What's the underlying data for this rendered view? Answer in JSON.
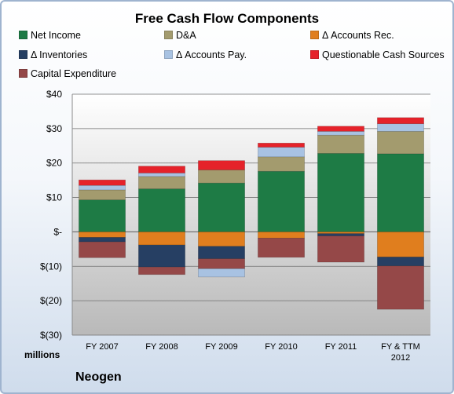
{
  "chart_data": {
    "type": "bar",
    "stacked": true,
    "title": "Free Cash Flow Components",
    "xlabel": "",
    "ylabel": "millions",
    "ylim": [
      -30,
      40
    ],
    "yticks": [
      40,
      30,
      20,
      10,
      0,
      -10,
      -20,
      -30
    ],
    "ytick_labels": [
      "$40",
      "$30",
      "$20",
      "$10",
      "$-",
      "$(10)",
      "$(20)",
      "$(30)"
    ],
    "grid": true,
    "legend_position": "top",
    "categories": [
      [
        "FY 2007"
      ],
      [
        "FY 2008"
      ],
      [
        "FY 2009"
      ],
      [
        "FY 2010"
      ],
      [
        "FY 2011"
      ],
      [
        "FY & TTM",
        "2012"
      ]
    ],
    "series": [
      {
        "name": "Net Income",
        "color": "#1e7b45",
        "values": [
          9.3,
          12.5,
          14.2,
          17.6,
          22.8,
          22.7
        ]
      },
      {
        "name": "D&A",
        "color": "#a39b6e",
        "values": [
          2.9,
          3.6,
          3.8,
          4.2,
          5.3,
          6.5
        ]
      },
      {
        "name": "Δ Accounts Rec.",
        "color": "#e07e1e",
        "values": [
          -1.6,
          -3.8,
          -4.2,
          -1.8,
          -0.5,
          -7.3
        ]
      },
      {
        "name": "Δ Inventories",
        "color": "#263f63",
        "values": [
          -1.3,
          -6.4,
          -3.6,
          0,
          -0.7,
          -2.6
        ]
      },
      {
        "name": "Δ Accounts Pay.",
        "color": "#a8c2e2",
        "values": [
          1.3,
          1.0,
          0,
          2.8,
          1.1,
          2.2
        ]
      },
      {
        "name": "Questionable Cash Sources",
        "color": "#e5222a",
        "values": [
          1.6,
          2.0,
          2.7,
          1.2,
          1.5,
          1.8
        ]
      },
      {
        "name": "Capital Expenditure",
        "color": "#954848",
        "values": [
          -4.6,
          -2.2,
          -2.9,
          -5.6,
          -7.6,
          -12.6
        ]
      },
      {
        "name": "Δ Accounts Pay.",
        "color": "#a8c2e2",
        "values": [
          0,
          0,
          -2.4,
          0,
          0,
          0
        ],
        "hidden_in_legend": true
      }
    ]
  },
  "legend": [
    {
      "label": "Net Income",
      "color": "#1e7b45"
    },
    {
      "label": "D&A",
      "color": "#a39b6e"
    },
    {
      "label": "Δ Accounts Rec.",
      "color": "#e07e1e"
    },
    {
      "label": "Δ Inventories",
      "color": "#263f63"
    },
    {
      "label": "Δ Accounts Pay.",
      "color": "#a8c2e2"
    },
    {
      "label": "Questionable Cash Sources",
      "color": "#e5222a"
    },
    {
      "label": "Capital Expenditure",
      "color": "#954848"
    }
  ],
  "unit_label": "millions",
  "company": "Neogen"
}
